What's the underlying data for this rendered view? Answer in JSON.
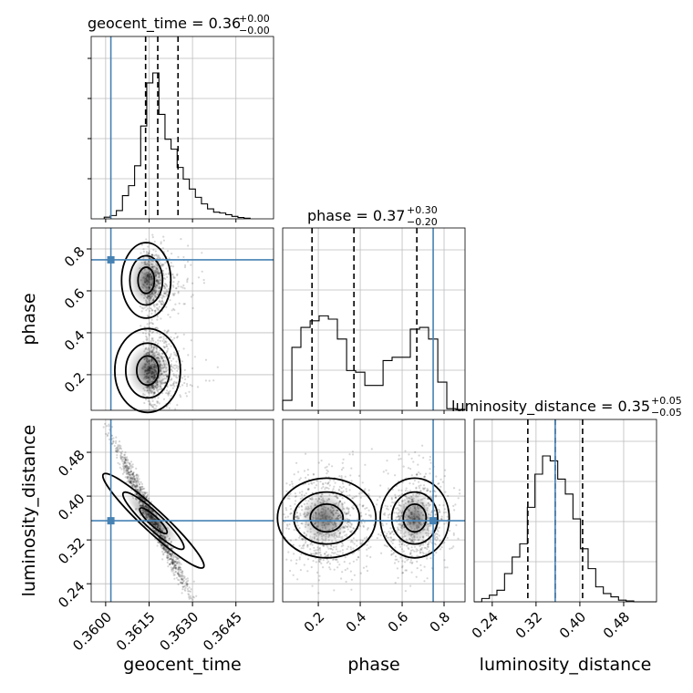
{
  "chart_data": {
    "type": "corner",
    "parameters": [
      "geocent_time",
      "phase",
      "luminosity_distance"
    ],
    "axis_labels": {
      "geocent_time": "geocent_time",
      "phase": "phase",
      "luminosity_distance": "luminosity_distance"
    },
    "titles": [
      {
        "param": "geocent_time",
        "text": "geocent_time = 0.36",
        "upper": "+0.00",
        "lower": "−0.00"
      },
      {
        "param": "phase",
        "text": "phase = 0.37",
        "upper": "+0.30",
        "lower": "−0.20"
      },
      {
        "param": "luminosity_distance",
        "text": "luminosity_distance = 0.35",
        "upper": "+0.05",
        "lower": "−0.05"
      }
    ],
    "ranges": {
      "geocent_time": [
        0.3595,
        0.3658
      ],
      "phase": [
        0.03,
        0.9
      ],
      "luminosity_distance": [
        0.207,
        0.54
      ]
    },
    "ticks": {
      "geocent_time": {
        "values": [
          0.36,
          0.3615,
          0.363,
          0.3645
        ],
        "labels": [
          "0.3600",
          "0.3615",
          "0.3630",
          "0.3645"
        ]
      },
      "phase": {
        "values": [
          0.2,
          0.4,
          0.6,
          0.8
        ],
        "labels": [
          "0.2",
          "0.4",
          "0.6",
          "0.8"
        ]
      },
      "luminosity_distance": {
        "values": [
          0.24,
          0.32,
          0.4,
          0.48
        ],
        "labels": [
          "0.24",
          "0.32",
          "0.40",
          "0.48"
        ]
      }
    },
    "truths": {
      "geocent_time": 0.36018,
      "phase": 0.748,
      "luminosity_distance": 0.355
    },
    "quantiles": {
      "geocent_time": [
        0.36138,
        0.3618,
        0.3625
      ],
      "phase": [
        0.17,
        0.37,
        0.67
      ],
      "luminosity_distance": [
        0.305,
        0.355,
        0.405
      ]
    },
    "histograms": {
      "geocent_time": {
        "edges": [
          0.35995,
          0.36016,
          0.36037,
          0.36058,
          0.36079,
          0.361,
          0.36121,
          0.36142,
          0.36163,
          0.36184,
          0.36205,
          0.36226,
          0.36247,
          0.36268,
          0.36289,
          0.3631,
          0.36331,
          0.36352,
          0.36373,
          0.36394,
          0.36415,
          0.36436,
          0.36457,
          0.36478,
          0.36499
        ],
        "counts": [
          0.01,
          0.02,
          0.05,
          0.14,
          0.2,
          0.32,
          0.56,
          0.82,
          0.88,
          0.63,
          0.48,
          0.42,
          0.31,
          0.24,
          0.18,
          0.13,
          0.09,
          0.06,
          0.04,
          0.035,
          0.025,
          0.015,
          0.008,
          0.004
        ]
      },
      "phase": {
        "edges": [
          0.03,
          0.074,
          0.117,
          0.161,
          0.204,
          0.248,
          0.291,
          0.335,
          0.378,
          0.422,
          0.465,
          0.509,
          0.552,
          0.596,
          0.639,
          0.683,
          0.726,
          0.77,
          0.813,
          0.857,
          0.9
        ],
        "counts": [
          0.06,
          0.38,
          0.5,
          0.54,
          0.57,
          0.55,
          0.43,
          0.24,
          0.23,
          0.15,
          0.15,
          0.3,
          0.32,
          0.32,
          0.49,
          0.5,
          0.43,
          0.17,
          0.01,
          0.005
        ]
      },
      "luminosity_distance": {
        "edges": [
          0.207,
          0.2209,
          0.2348,
          0.2486,
          0.2625,
          0.2764,
          0.2903,
          0.3041,
          0.318,
          0.3319,
          0.3458,
          0.3596,
          0.3735,
          0.3874,
          0.4012,
          0.4151,
          0.429,
          0.4429,
          0.4567,
          0.4706,
          0.4845,
          0.4984,
          0.5122,
          0.5261,
          0.54
        ],
        "counts": [
          0.0,
          0.02,
          0.04,
          0.07,
          0.17,
          0.27,
          0.35,
          0.57,
          0.77,
          0.88,
          0.85,
          0.74,
          0.65,
          0.5,
          0.32,
          0.2,
          0.09,
          0.05,
          0.03,
          0.01,
          0.005,
          0.0,
          0.0,
          0.0
        ]
      }
    }
  }
}
